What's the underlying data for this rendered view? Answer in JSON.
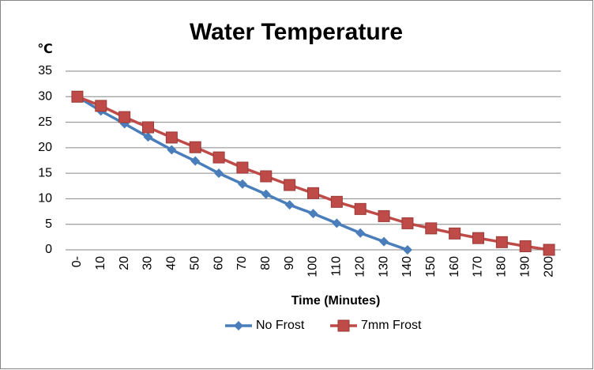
{
  "chart_data": {
    "type": "line",
    "title": "Water Temperature",
    "y_label": "℃",
    "x_label": "Time (Minutes)",
    "categories": [
      "0-",
      "10",
      "20",
      "30",
      "40",
      "50",
      "60",
      "70",
      "80",
      "90",
      "100",
      "110",
      "120",
      "130",
      "140",
      "150",
      "160",
      "170",
      "180",
      "190",
      "200"
    ],
    "series": [
      {
        "name": "No Frost",
        "color": "#4a7ebb",
        "marker": "diamond",
        "values": [
          30,
          27.2,
          24.7,
          22.1,
          19.6,
          17.4,
          15.0,
          12.9,
          10.9,
          8.8,
          7.1,
          5.2,
          3.3,
          1.6,
          0,
          null,
          null,
          null,
          null,
          null,
          null
        ]
      },
      {
        "name": "7mm Frost",
        "color": "#be4b48",
        "marker": "square",
        "values": [
          30,
          28.2,
          26.0,
          24.0,
          22.0,
          20.1,
          18.1,
          16.1,
          14.4,
          12.7,
          11.1,
          9.4,
          8.0,
          6.6,
          5.2,
          4.2,
          3.2,
          2.3,
          1.5,
          0.7,
          0
        ]
      }
    ],
    "ylim": [
      0,
      35
    ],
    "yticks": [
      0,
      5,
      10,
      15,
      20,
      25,
      30,
      35
    ],
    "grid": true,
    "legend": "bottom"
  }
}
